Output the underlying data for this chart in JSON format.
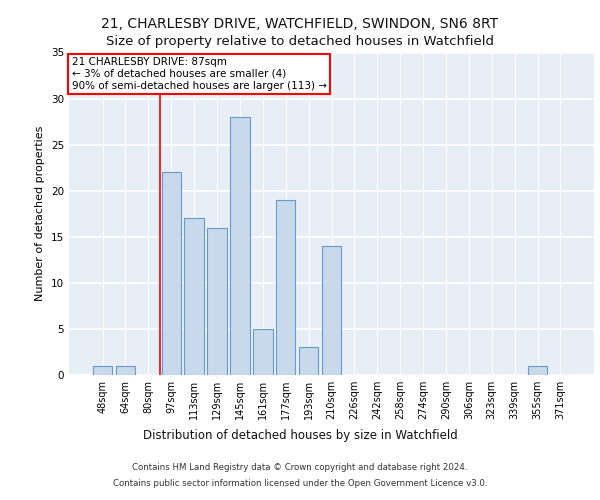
{
  "title_line1": "21, CHARLESBY DRIVE, WATCHFIELD, SWINDON, SN6 8RT",
  "title_line2": "Size of property relative to detached houses in Watchfield",
  "xlabel": "Distribution of detached houses by size in Watchfield",
  "ylabel": "Number of detached properties",
  "footer_line1": "Contains HM Land Registry data © Crown copyright and database right 2024.",
  "footer_line2": "Contains public sector information licensed under the Open Government Licence v3.0.",
  "categories": [
    "48sqm",
    "64sqm",
    "80sqm",
    "97sqm",
    "113sqm",
    "129sqm",
    "145sqm",
    "161sqm",
    "177sqm",
    "193sqm",
    "210sqm",
    "226sqm",
    "242sqm",
    "258sqm",
    "274sqm",
    "290sqm",
    "306sqm",
    "323sqm",
    "339sqm",
    "355sqm",
    "371sqm"
  ],
  "values": [
    1,
    1,
    0,
    22,
    17,
    16,
    28,
    5,
    19,
    3,
    14,
    0,
    0,
    0,
    0,
    0,
    0,
    0,
    0,
    1,
    0
  ],
  "bar_color": "#c9d9ec",
  "bar_edge_color": "#6699cc",
  "annotation_text": "21 CHARLESBY DRIVE: 87sqm\n← 3% of detached houses are smaller (4)\n90% of semi-detached houses are larger (113) →",
  "annotation_box_color": "white",
  "annotation_box_edge_color": "red",
  "vline_color": "red",
  "ylim": [
    0,
    35
  ],
  "yticks": [
    0,
    5,
    10,
    15,
    20,
    25,
    30,
    35
  ],
  "background_color": "#e8eef5",
  "grid_color": "white",
  "title_fontsize": 10,
  "subtitle_fontsize": 9.5,
  "tick_fontsize": 7,
  "ylabel_fontsize": 8,
  "xlabel_fontsize": 8.5,
  "annotation_fontsize": 7.5,
  "footer_fontsize": 6.2
}
